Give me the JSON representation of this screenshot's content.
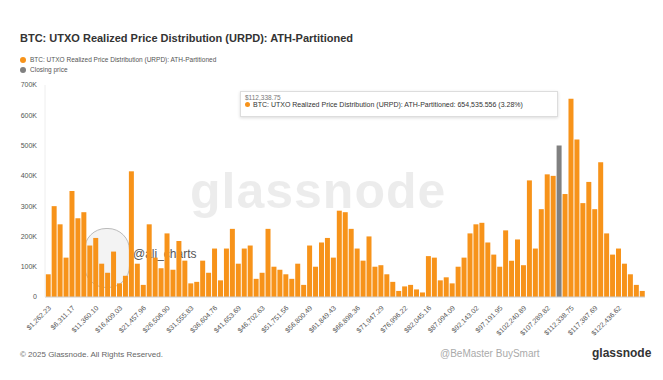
{
  "chart_data": {
    "type": "bar",
    "title": "BTC: UTXO Realized Price Distribution (URPD): ATH-Partitioned",
    "categories": [
      "$1,262.23",
      null,
      null,
      null,
      "$6,311.17",
      null,
      null,
      null,
      "$11,360.10",
      null,
      null,
      null,
      "$16,409.03",
      null,
      null,
      null,
      "$21,457.96",
      null,
      null,
      null,
      "$26,506.90",
      null,
      null,
      null,
      "$31,555.83",
      null,
      null,
      null,
      "$36,604.76",
      null,
      null,
      null,
      "$41,653.69",
      null,
      null,
      null,
      "$46,702.63",
      null,
      null,
      null,
      "$51,751.56",
      null,
      null,
      null,
      "$56,800.49",
      null,
      null,
      null,
      "$61,849.43",
      null,
      null,
      null,
      "$66,898.36",
      null,
      null,
      null,
      "$71,947.29",
      null,
      null,
      null,
      "$76,996.22",
      null,
      null,
      null,
      "$82,045.16",
      null,
      null,
      null,
      "$87,094.09",
      null,
      null,
      null,
      "$92,143.02",
      null,
      null,
      null,
      "$97,191.95",
      null,
      null,
      null,
      "$102,240.89",
      null,
      null,
      null,
      "$107,289.82",
      null,
      null,
      null,
      "$112,338.75",
      null,
      null,
      null,
      "$117,387.69",
      null,
      null,
      null,
      "$122,436.62",
      null,
      null,
      null,
      null
    ],
    "series": [
      {
        "name": "BTC: UTXO Realized Price Distribution (URPD): ATH-Partitioned",
        "color": "#f7931a",
        "values": [
          75000,
          300000,
          240000,
          130000,
          350000,
          260000,
          280000,
          170000,
          195000,
          110000,
          80000,
          150000,
          45000,
          70000,
          415000,
          110000,
          40000,
          240000,
          130000,
          95000,
          210000,
          90000,
          185000,
          120000,
          45000,
          50000,
          120000,
          80000,
          160000,
          55000,
          160000,
          225000,
          110000,
          160000,
          170000,
          60000,
          80000,
          225000,
          100000,
          90000,
          75000,
          60000,
          110000,
          40000,
          170000,
          100000,
          180000,
          195000,
          130000,
          285000,
          280000,
          225000,
          160000,
          120000,
          200000,
          100000,
          105000,
          75000,
          50000,
          20000,
          35000,
          40000,
          25000,
          15000,
          135000,
          130000,
          55000,
          65000,
          45000,
          100000,
          130000,
          210000,
          240000,
          245000,
          180000,
          140000,
          100000,
          220000,
          120000,
          190000,
          105000,
          385000,
          160000,
          290000,
          405000,
          400000,
          null,
          340000,
          654535.556,
          520000,
          310000,
          380000,
          290000,
          445000,
          210000,
          140000,
          160000,
          110000,
          75000,
          40000,
          20000
        ]
      },
      {
        "name": "Closing price",
        "color": "#808080",
        "values": [
          null,
          null,
          null,
          null,
          null,
          null,
          null,
          null,
          null,
          null,
          null,
          null,
          null,
          null,
          null,
          null,
          null,
          null,
          null,
          null,
          null,
          null,
          null,
          null,
          null,
          null,
          null,
          null,
          null,
          null,
          null,
          null,
          null,
          null,
          null,
          null,
          null,
          null,
          null,
          null,
          null,
          null,
          null,
          null,
          null,
          null,
          null,
          null,
          null,
          null,
          null,
          null,
          null,
          null,
          null,
          null,
          null,
          null,
          null,
          null,
          null,
          null,
          null,
          null,
          null,
          null,
          null,
          null,
          null,
          null,
          null,
          null,
          null,
          null,
          null,
          null,
          null,
          null,
          null,
          null,
          null,
          null,
          null,
          null,
          null,
          null,
          500000,
          null,
          null,
          null,
          null,
          null,
          null,
          null,
          null,
          null,
          null,
          null,
          null,
          null,
          null
        ]
      }
    ],
    "ylim": [
      0,
      700000
    ],
    "yticks": [
      0,
      {
        "value": 100000,
        "label": "100K"
      },
      {
        "value": 200000,
        "label": "200K"
      },
      {
        "value": 300000,
        "label": "300K"
      },
      {
        "value": 400000,
        "label": "400K"
      },
      {
        "value": 500000,
        "label": "500K"
      },
      {
        "value": 600000,
        "label": "600K"
      },
      {
        "value": 700000,
        "label": "700K"
      }
    ],
    "grid": false,
    "stacked": true,
    "legend": "top-left",
    "annotations": [
      "$112,338.75",
      "BTC: UTXO Realized Price Distribution (URPD): ATH-Partitioned: 654,535.556 (3.28%)",
      "glassnode",
      "@ali_charts",
      "© 2025 Glassnode. All Rights Reserved.",
      "glassnode",
      "@BeMaster BuySmart"
    ]
  }
}
